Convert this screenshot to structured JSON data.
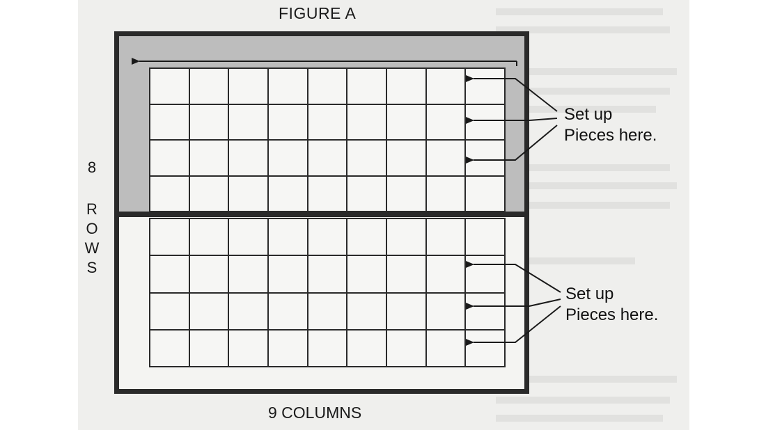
{
  "figure": {
    "title": "FIGURE A",
    "rows": 8,
    "columns": 9,
    "rows_label_number": "8",
    "rows_label_letters": [
      "R",
      "O",
      "W",
      "S"
    ],
    "columns_label": "9 COLUMNS",
    "callouts": [
      {
        "line1": "Set up",
        "line2": "Pieces here."
      },
      {
        "line1": "Set up",
        "line2": "Pieces here."
      }
    ],
    "shading_color": "#bdbdbd",
    "line_color": "#2a2a2a"
  }
}
